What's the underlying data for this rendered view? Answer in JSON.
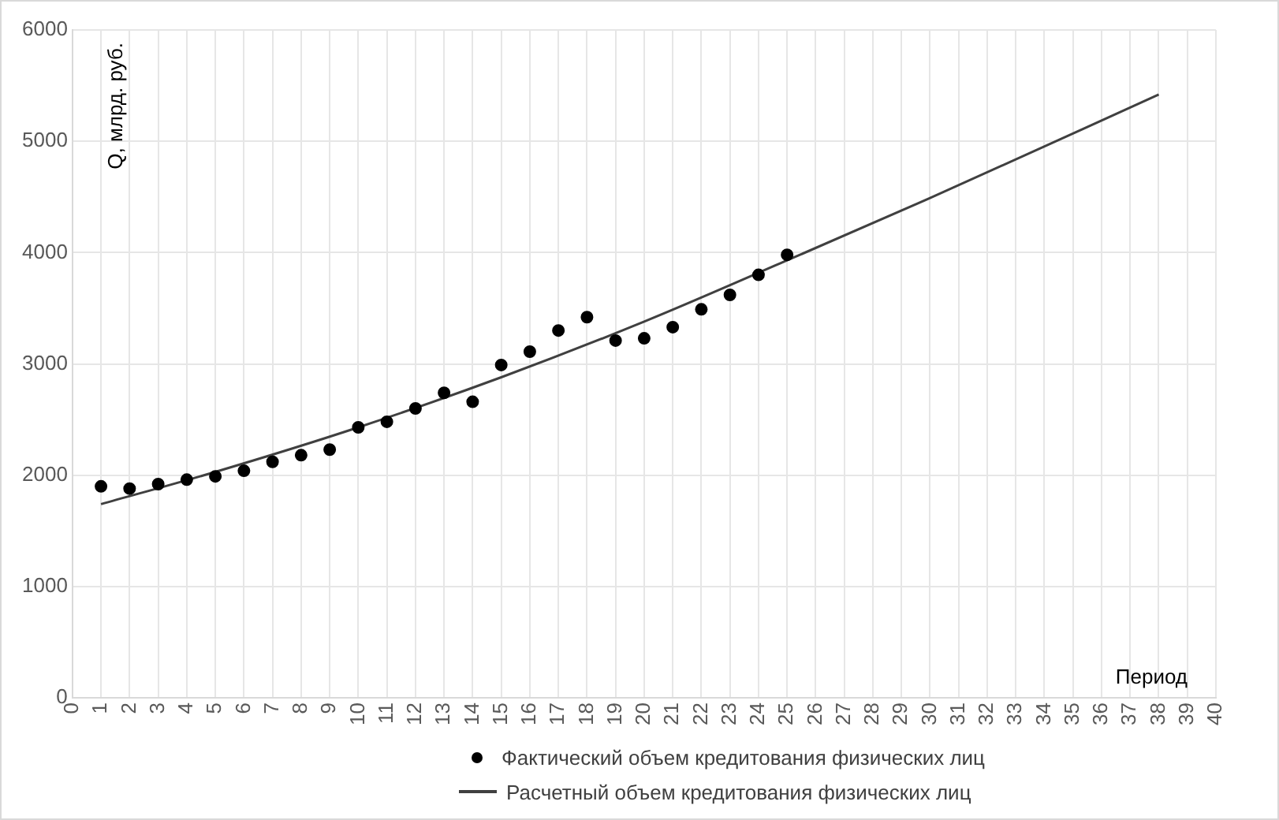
{
  "chart_data": {
    "type": "scatter",
    "xlabel": "Период",
    "ylabel": "Q, млрд. руб.",
    "xlim": [
      0,
      40
    ],
    "xticks": [
      0,
      1,
      2,
      3,
      4,
      5,
      6,
      7,
      8,
      9,
      10,
      11,
      12,
      13,
      14,
      15,
      16,
      17,
      18,
      19,
      20,
      21,
      22,
      23,
      24,
      25,
      26,
      27,
      28,
      29,
      30,
      31,
      32,
      33,
      34,
      35,
      36,
      37,
      38,
      39,
      40
    ],
    "ylim": [
      0,
      6000
    ],
    "yticks": [
      0,
      1000,
      2000,
      3000,
      4000,
      5000,
      6000
    ],
    "grid": true,
    "legend": "bottom",
    "series": [
      {
        "name": "Фактический объем кредитования физических лиц",
        "marker": "circle",
        "color": "#000000",
        "x": [
          1,
          2,
          3,
          4,
          5,
          6,
          7,
          8,
          9,
          10,
          11,
          12,
          13,
          14,
          15,
          16,
          17,
          18,
          19,
          20,
          21,
          22,
          23,
          24,
          25
        ],
        "values": [
          1900,
          1880,
          1920,
          1960,
          1990,
          2040,
          2120,
          2180,
          2230,
          2430,
          2480,
          2600,
          2740,
          2660,
          2990,
          3110,
          3300,
          3420,
          3210,
          3230,
          3330,
          3490,
          3620,
          3800,
          3980
        ]
      },
      {
        "name": "Расчетный объем кредитования физических лиц",
        "type": "line",
        "marker": "none",
        "line_style": "solid",
        "color": "#404040",
        "x": [
          1,
          5,
          10,
          15,
          20,
          25,
          30,
          38
        ],
        "values": [
          1740,
          2030,
          2430,
          2880,
          3380,
          3930,
          4490,
          5420
        ]
      }
    ]
  }
}
